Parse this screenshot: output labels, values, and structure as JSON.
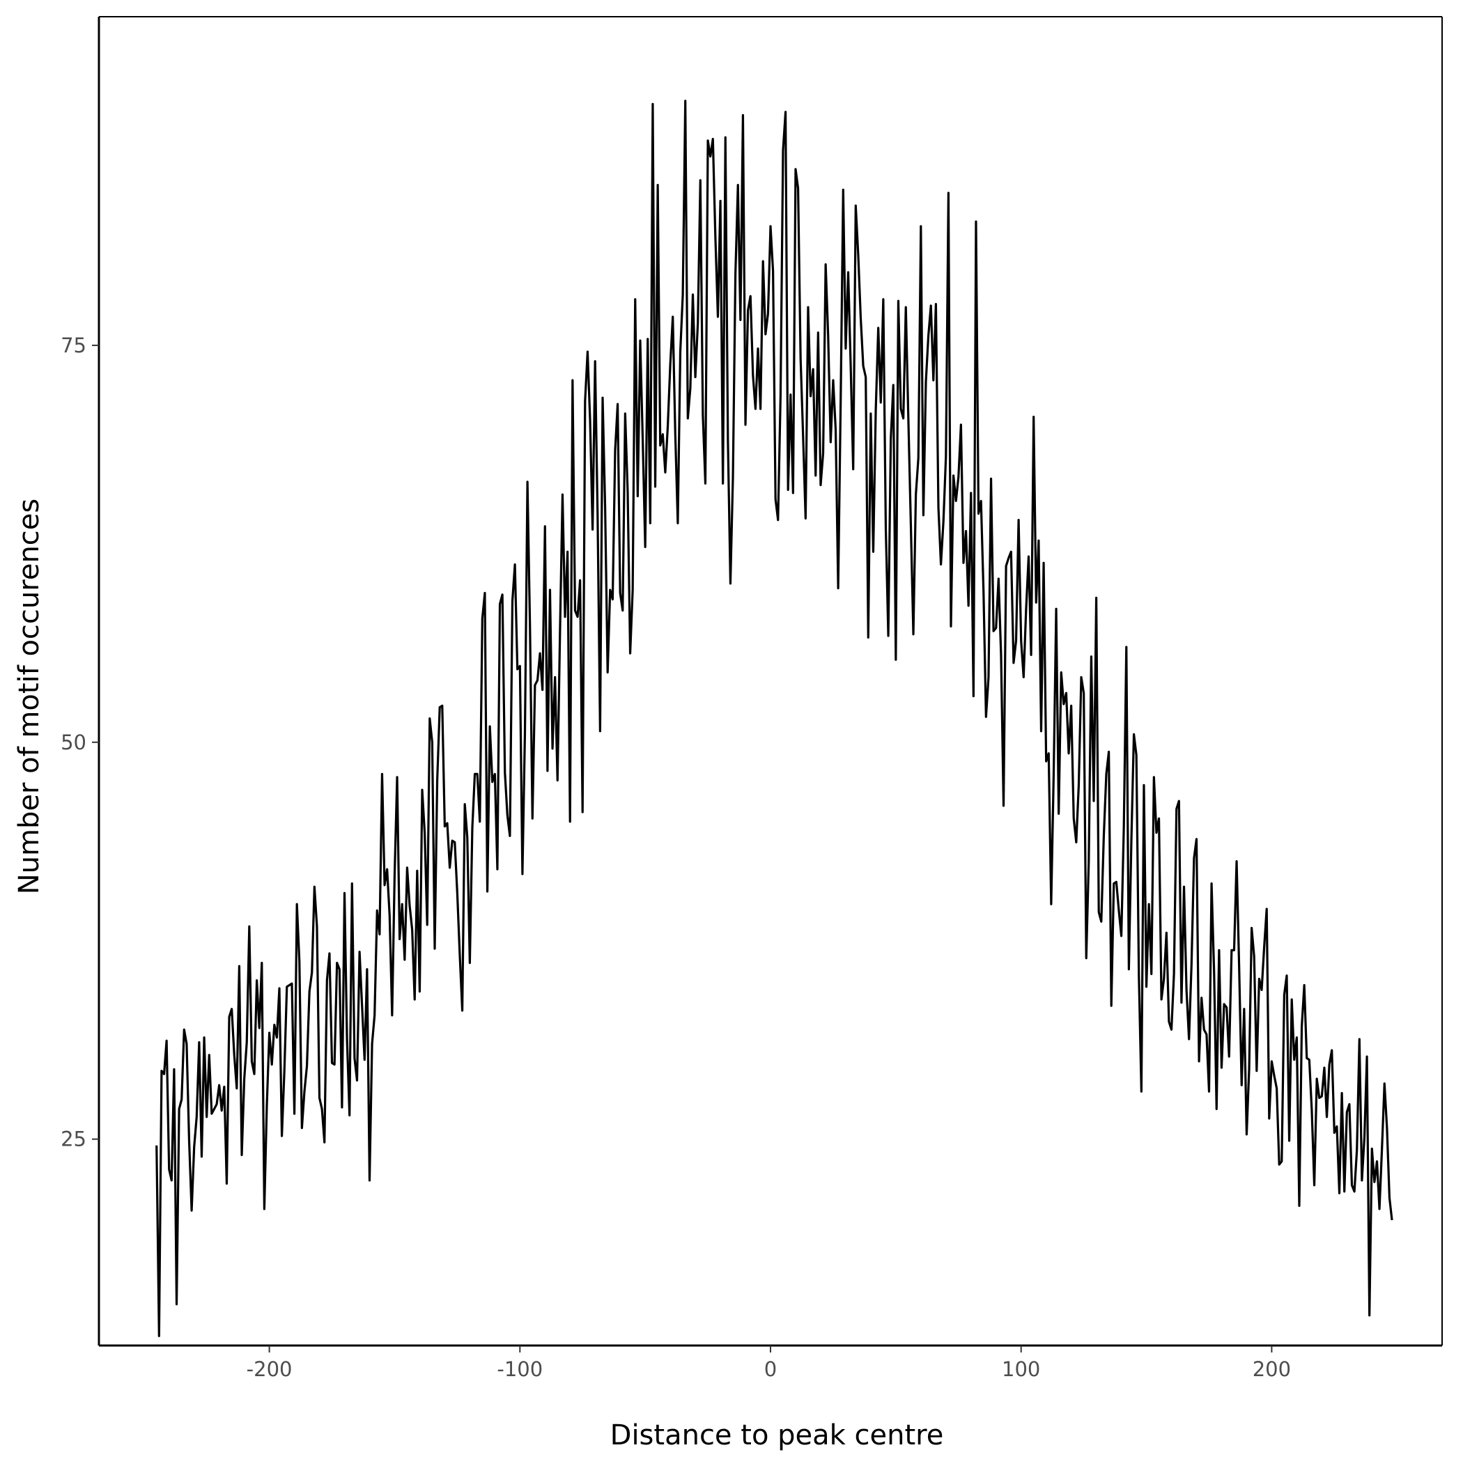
{
  "chart_data": {
    "type": "line",
    "title": "",
    "xlabel": "Distance to peak centre",
    "ylabel": "Number of motif occurences",
    "xlim": [
      -268,
      268
    ],
    "ylim": [
      12,
      95.7
    ],
    "xticks": [
      -200,
      -100,
      0,
      100,
      200
    ],
    "xtick_labels": [
      "-200",
      "-100",
      "0",
      "100",
      "200"
    ],
    "yticks": [
      25,
      50,
      75
    ],
    "ytick_labels": [
      "25",
      "50",
      "75"
    ],
    "grid": false,
    "legend": "none",
    "colors": {
      "line": "#000000",
      "axis": "#000000",
      "tick_label": "#4d4d4d",
      "background": "#ffffff"
    },
    "series": [
      {
        "x_start": -245,
        "x_step": 1,
        "values": [
          24.6,
          12.6,
          29.3,
          29.1,
          31.2,
          23.1,
          22.4,
          29.4,
          14.6,
          26.9,
          27.5,
          31.9,
          31.0,
          24.9,
          20.5,
          24.5,
          26.4,
          31.1,
          23.9,
          31.4,
          26.4,
          30.3,
          26.6,
          26.9,
          27.2,
          28.4,
          26.8,
          28.3,
          22.2,
          32.7,
          33.2,
          30.3,
          28.2,
          35.9,
          24.0,
          28.8,
          31.1,
          38.4,
          29.9,
          29.1,
          35.0,
          32.0,
          36.1,
          20.6,
          27.1,
          31.7,
          29.7,
          32.2,
          31.4,
          34.5,
          25.2,
          29.3,
          34.6,
          34.7,
          34.8,
          26.6,
          39.8,
          36.2,
          25.7,
          28.0,
          29.6,
          34.3,
          35.5,
          40.9,
          38.4,
          27.6,
          26.9,
          24.8,
          35.0,
          36.7,
          29.8,
          29.7,
          36.1,
          35.7,
          27.0,
          40.5,
          31.3,
          26.5,
          41.1,
          30.1,
          28.7,
          36.8,
          33.4,
          30.0,
          35.7,
          22.4,
          31.0,
          32.8,
          39.4,
          37.9,
          48.0,
          41.0,
          42.0,
          39.1,
          32.8,
          41.7,
          47.8,
          37.6,
          39.8,
          36.3,
          42.1,
          39.7,
          38.2,
          33.8,
          41.9,
          34.3,
          47.0,
          44.3,
          38.5,
          51.5,
          50.0,
          37.0,
          47.6,
          52.2,
          52.3,
          44.7,
          44.9,
          42.1,
          43.8,
          43.7,
          40.5,
          36.6,
          33.1,
          46.1,
          44.0,
          36.1,
          44.6,
          48.0,
          48.0,
          45.0,
          57.8,
          59.4,
          40.6,
          51.0,
          47.5,
          48.0,
          42.0,
          58.7,
          59.3,
          48.1,
          45.4,
          44.1,
          58.9,
          61.2,
          54.6,
          54.8,
          41.7,
          50.6,
          66.4,
          57.4,
          45.2,
          53.6,
          53.9,
          55.6,
          53.3,
          63.6,
          48.2,
          59.6,
          49.6,
          54.1,
          47.6,
          57.0,
          65.6,
          57.9,
          62.0,
          45.0,
          72.8,
          58.3,
          57.9,
          60.2,
          45.6,
          71.5,
          74.6,
          70.3,
          63.4,
          74.0,
          64.3,
          50.7,
          71.7,
          64.8,
          54.4,
          59.6,
          59.0,
          68.4,
          71.3,
          59.4,
          58.3,
          70.7,
          65.8,
          55.6,
          59.6,
          77.9,
          65.5,
          75.3,
          69.1,
          62.3,
          75.4,
          63.8,
          90.2,
          66.1,
          85.1,
          68.7,
          69.4,
          67.0,
          69.9,
          73.8,
          76.8,
          69.4,
          63.8,
          74.6,
          78.2,
          90.4,
          70.4,
          72.3,
          78.2,
          73.0,
          76.4,
          85.4,
          70.6,
          66.3,
          87.9,
          86.9,
          88.0,
          81.8,
          76.8,
          84.1,
          66.3,
          88.1,
          69.0,
          60.0,
          66.7,
          79.5,
          85.1,
          76.6,
          89.5,
          70.0,
          77.2,
          78.1,
          73.1,
          71.0,
          74.8,
          71.0,
          80.3,
          75.7,
          77.0,
          82.5,
          79.7,
          65.3,
          64.0,
          71.8,
          87.3,
          89.7,
          65.9,
          71.9,
          65.7,
          86.1,
          84.9,
          74.2,
          69.3,
          64.1,
          77.4,
          71.8,
          73.5,
          66.8,
          75.8,
          66.2,
          68.2,
          80.1,
          75.6,
          68.9,
          72.8,
          69.7,
          59.7,
          71.5,
          84.8,
          74.8,
          79.6,
          73.7,
          67.2,
          83.8,
          80.7,
          76.7,
          73.7,
          73.0,
          56.6,
          70.7,
          62.0,
          70.9,
          76.1,
          71.4,
          77.9,
          63.5,
          56.7,
          69.1,
          72.5,
          55.2,
          77.8,
          71.0,
          70.4,
          77.4,
          70.4,
          63.7,
          56.8,
          65.6,
          67.9,
          82.5,
          64.3,
          72.7,
          75.6,
          77.5,
          72.8,
          77.6,
          64.8,
          61.2,
          63.9,
          68.0,
          84.6,
          57.3,
          66.8,
          65.2,
          66.7,
          70.0,
          61.3,
          63.3,
          58.6,
          65.7,
          52.9,
          82.8,
          64.4,
          65.2,
          59.5,
          51.6,
          54.1,
          66.6,
          57.0,
          57.2,
          60.3,
          55.5,
          46.0,
          61.1,
          61.6,
          62.0,
          55.0,
          56.4,
          64.0,
          56.4,
          54.1,
          58.4,
          61.7,
          55.5,
          70.5,
          58.8,
          62.7,
          50.7,
          61.3,
          48.8,
          49.3,
          39.8,
          48.0,
          58.4,
          45.5,
          54.4,
          52.4,
          53.1,
          49.3,
          52.3,
          45.2,
          43.7,
          47.3,
          54.1,
          53.1,
          36.4,
          42.5,
          55.4,
          46.3,
          59.1,
          39.3,
          38.7,
          44.1,
          48.0,
          49.4,
          33.4,
          41.1,
          41.2,
          39.4,
          37.8,
          44.7,
          56.0,
          35.7,
          43.8,
          50.5,
          49.2,
          35.3,
          28.0,
          47.3,
          34.6,
          39.8,
          35.4,
          47.8,
          44.3,
          45.2,
          33.8,
          35.1,
          38.0,
          32.4,
          31.9,
          35.4,
          45.8,
          46.3,
          33.6,
          40.9,
          34.4,
          31.3,
          36.0,
          42.7,
          43.9,
          29.9,
          33.9,
          31.9,
          31.6,
          28.0,
          41.1,
          35.6,
          26.9,
          36.9,
          29.5,
          33.5,
          33.3,
          30.2,
          36.9,
          36.9,
          42.5,
          35.9,
          28.4,
          33.2,
          25.3,
          29.4,
          38.3,
          36.5,
          29.3,
          35.1,
          34.4,
          37.1,
          39.5,
          26.3,
          29.9,
          29.0,
          28.2,
          23.4,
          23.6,
          34.1,
          35.3,
          24.9,
          33.8,
          30.0,
          31.4,
          20.8,
          32.1,
          34.7,
          30.1,
          30.0,
          26.8,
          22.1,
          28.8,
          27.6,
          27.7,
          29.5,
          26.4,
          29.7,
          30.6,
          25.4,
          25.8,
          21.6,
          27.9,
          21.7,
          26.7,
          27.2,
          22.1,
          21.7,
          24.3,
          31.3,
          22.4,
          25.1,
          30.2,
          13.9,
          24.4,
          22.3,
          23.6,
          20.6,
          24.4,
          28.5,
          25.7,
          21.3,
          19.9
        ]
      }
    ]
  }
}
